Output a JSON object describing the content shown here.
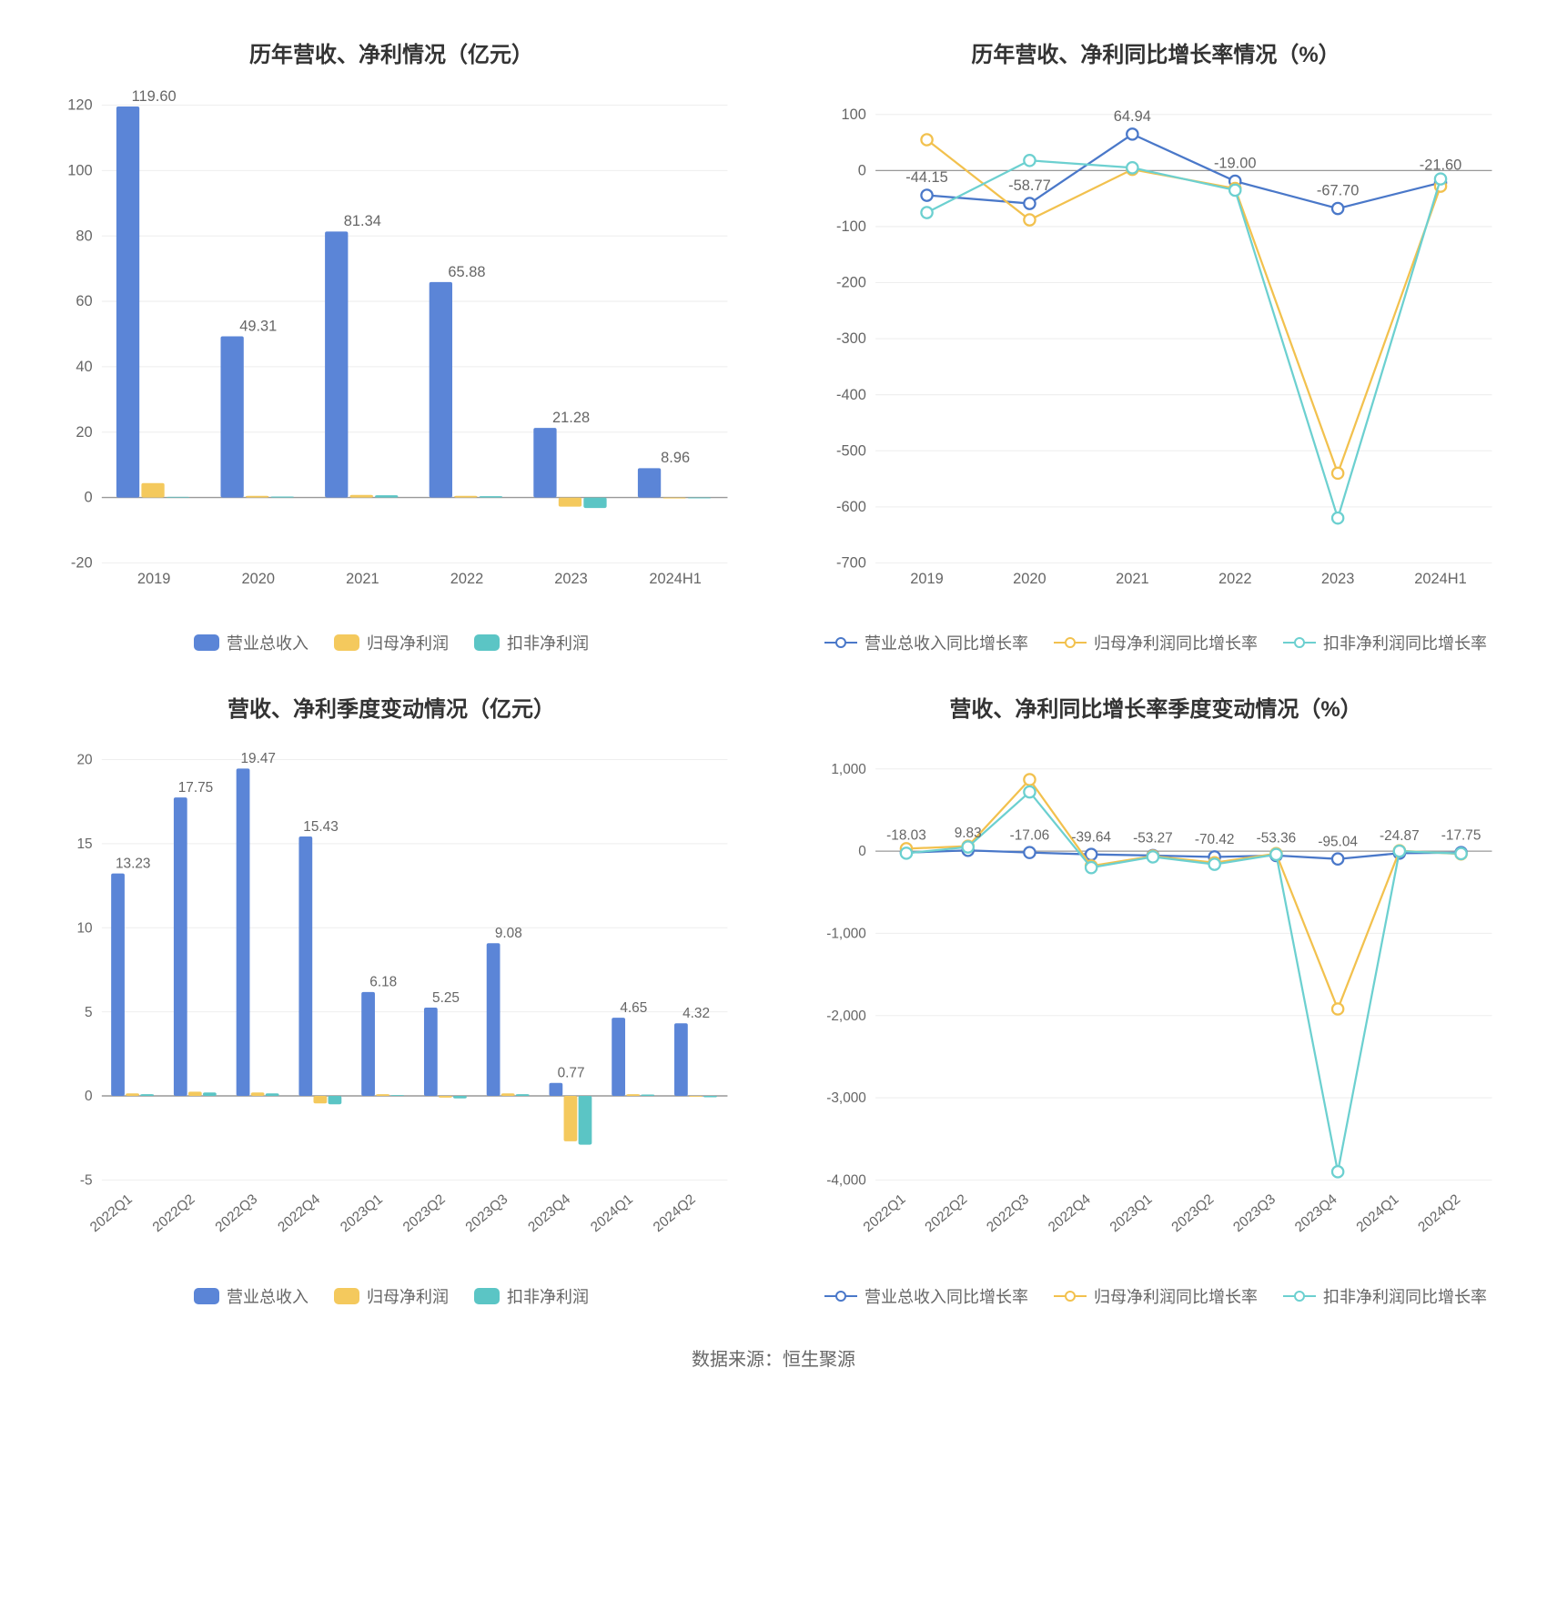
{
  "source_note": "数据来源：恒生聚源",
  "colors": {
    "series_blue": "#5b85d7",
    "series_yellow": "#f4c95d",
    "series_teal": "#5bc5c5",
    "line_blue": "#4a78c9",
    "line_yellow": "#f2c14e",
    "line_teal": "#6cd0d0",
    "axis": "#999999",
    "axis_dark": "#666666",
    "grid": "#eeeeee",
    "text": "#666666",
    "title": "#333333",
    "bg": "#ffffff"
  },
  "charts": {
    "annual_bar": {
      "type": "bar",
      "title": "历年营收、净利情况（亿元）",
      "categories": [
        "2019",
        "2020",
        "2021",
        "2022",
        "2023",
        "2024H1"
      ],
      "series": [
        {
          "name": "营业总收入",
          "colorKey": "series_blue",
          "values": [
            119.6,
            49.31,
            81.34,
            65.88,
            21.28,
            8.96
          ],
          "showLabels": true
        },
        {
          "name": "归母净利润",
          "colorKey": "series_yellow",
          "values": [
            4.4,
            0.5,
            0.8,
            0.5,
            -2.8,
            -0.3
          ],
          "showLabels": false
        },
        {
          "name": "扣非净利润",
          "colorKey": "series_teal",
          "values": [
            0.2,
            0.3,
            0.7,
            0.4,
            -3.2,
            -0.25
          ],
          "showLabels": false
        }
      ],
      "ylim": [
        -20,
        120
      ],
      "ytick_step": 20,
      "bar_group_width": 0.72,
      "label_fontsize": 16,
      "tick_fontsize": 16,
      "rotate_x_labels": 0
    },
    "annual_growth": {
      "type": "line",
      "title": "历年营收、净利同比增长率情况（%）",
      "categories": [
        "2019",
        "2020",
        "2021",
        "2022",
        "2023",
        "2024H1"
      ],
      "series": [
        {
          "name": "营业总收入同比增长率",
          "colorKey": "line_blue",
          "values": [
            -44.15,
            -58.77,
            64.94,
            -19.0,
            -67.7,
            -21.6
          ]
        },
        {
          "name": "归母净利润同比增长率",
          "colorKey": "line_yellow",
          "values": [
            55,
            -88,
            2,
            -32,
            -540,
            -28
          ]
        },
        {
          "name": "扣非净利润同比增长率",
          "colorKey": "line_teal",
          "values": [
            -75,
            18,
            5,
            -35,
            -620,
            -15
          ]
        }
      ],
      "point_labels": [
        {
          "i": 0,
          "y": -44.15,
          "text": "-44.15"
        },
        {
          "i": 1,
          "y": -58.77,
          "text": "-58.77"
        },
        {
          "i": 2,
          "y": 64.94,
          "text": "64.94"
        },
        {
          "i": 3,
          "y": -19.0,
          "text": "-19.00"
        },
        {
          "i": 4,
          "y": -67.7,
          "text": "-67.70"
        },
        {
          "i": 5,
          "y": -21.6,
          "text": "-21.60"
        }
      ],
      "ylim": [
        -700,
        100
      ],
      "ytick_step": 100,
      "tick_fontsize": 16,
      "rotate_x_labels": 0,
      "marker_radius": 6
    },
    "quarter_bar": {
      "type": "bar",
      "title": "营收、净利季度变动情况（亿元）",
      "categories": [
        "2022Q1",
        "2022Q2",
        "2022Q3",
        "2022Q4",
        "2023Q1",
        "2023Q2",
        "2023Q3",
        "2023Q4",
        "2024Q1",
        "2024Q2"
      ],
      "series": [
        {
          "name": "营业总收入",
          "colorKey": "series_blue",
          "values": [
            13.23,
            17.75,
            19.47,
            15.43,
            6.18,
            5.25,
            9.08,
            0.77,
            4.65,
            4.32
          ],
          "showLabels": true
        },
        {
          "name": "归母净利润",
          "colorKey": "series_yellow",
          "values": [
            0.15,
            0.25,
            0.2,
            -0.45,
            0.1,
            -0.1,
            0.15,
            -2.7,
            0.1,
            -0.05
          ],
          "showLabels": false
        },
        {
          "name": "扣非净利润",
          "colorKey": "series_teal",
          "values": [
            0.1,
            0.2,
            0.15,
            -0.5,
            0.05,
            -0.15,
            0.1,
            -2.9,
            0.08,
            -0.08
          ],
          "showLabels": false
        }
      ],
      "ylim": [
        -5,
        20
      ],
      "ytick_step": 5,
      "bar_group_width": 0.7,
      "label_fontsize": 15,
      "tick_fontsize": 15,
      "rotate_x_labels": -40
    },
    "quarter_growth": {
      "type": "line",
      "title": "营收、净利同比增长率季度变动情况（%）",
      "categories": [
        "2022Q1",
        "2022Q2",
        "2022Q3",
        "2022Q4",
        "2023Q1",
        "2023Q2",
        "2023Q3",
        "2023Q4",
        "2024Q1",
        "2024Q2"
      ],
      "series": [
        {
          "name": "营业总收入同比增长率",
          "colorKey": "line_blue",
          "values": [
            -18.03,
            9.83,
            -17.06,
            -39.64,
            -53.27,
            -70.42,
            -53.36,
            -95.04,
            -24.87,
            -17.75
          ]
        },
        {
          "name": "归母净利润同比增长率",
          "colorKey": "line_yellow",
          "values": [
            30,
            60,
            870,
            -180,
            -60,
            -140,
            -30,
            -1920,
            5,
            -35
          ]
        },
        {
          "name": "扣非净利润同比增长率",
          "colorKey": "line_teal",
          "values": [
            -25,
            50,
            720,
            -200,
            -70,
            -160,
            -40,
            -3900,
            0,
            -30
          ]
        }
      ],
      "point_labels": [
        {
          "i": 0,
          "y": -18.03,
          "text": "-18.03"
        },
        {
          "i": 1,
          "y": 9.83,
          "text": "9.83"
        },
        {
          "i": 2,
          "y": -17.06,
          "text": "-17.06"
        },
        {
          "i": 3,
          "y": -39.64,
          "text": "-39.64"
        },
        {
          "i": 4,
          "y": -53.27,
          "text": "-53.27"
        },
        {
          "i": 5,
          "y": -70.42,
          "text": "-70.42"
        },
        {
          "i": 6,
          "y": -53.36,
          "text": "-53.36"
        },
        {
          "i": 7,
          "y": -95.04,
          "text": "-95.04"
        },
        {
          "i": 8,
          "y": -24.87,
          "text": "-24.87"
        },
        {
          "i": 9,
          "y": -17.75,
          "text": "-17.75"
        }
      ],
      "ylim": [
        -4000,
        1000
      ],
      "ytick_step": 1000,
      "tick_fontsize": 15,
      "rotate_x_labels": -40,
      "marker_radius": 6
    }
  }
}
